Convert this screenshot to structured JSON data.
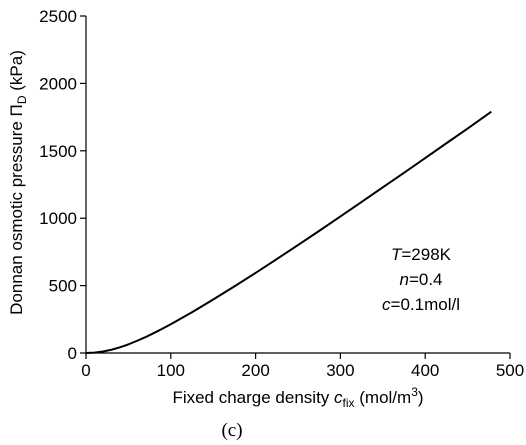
{
  "chart_data": {
    "type": "line",
    "xlabel": {
      "main": "Fixed charge density ",
      "var": "c",
      "sub": "fix",
      "unit_open": " (mol/m",
      "unit_sup": "3",
      "unit_close": ")"
    },
    "ylabel": {
      "main": "Donnan osmotic pressure ",
      "var": "Π",
      "sub": "D",
      "unit": " (kPa)"
    },
    "xlim": [
      0,
      500
    ],
    "ylim": [
      0,
      2500
    ],
    "x_ticks": [
      0,
      100,
      200,
      300,
      400,
      500
    ],
    "y_ticks": [
      0,
      500,
      1000,
      1500,
      2000,
      2500
    ],
    "grid": false,
    "series": [
      {
        "x": [
          0,
          10,
          20,
          30,
          40,
          50,
          60,
          70,
          80,
          90,
          100,
          125,
          150,
          175,
          200,
          225,
          250,
          275,
          300,
          325,
          350,
          375,
          400,
          425,
          450,
          478
        ],
        "y": [
          0,
          3,
          11,
          24,
          42,
          64,
          90,
          117,
          148,
          180,
          213,
          302,
          397,
          494,
          594,
          697,
          801,
          906,
          1013,
          1121,
          1229,
          1337,
          1446,
          1556,
          1665,
          1790
        ]
      }
    ],
    "annotations": [
      {
        "var": "T",
        "rest": "=298K"
      },
      {
        "var": "n",
        "rest": "=0.4"
      },
      {
        "var": "c",
        "rest": "=0.1mol/l"
      }
    ],
    "caption": "(c)",
    "line_color": "#000000"
  }
}
